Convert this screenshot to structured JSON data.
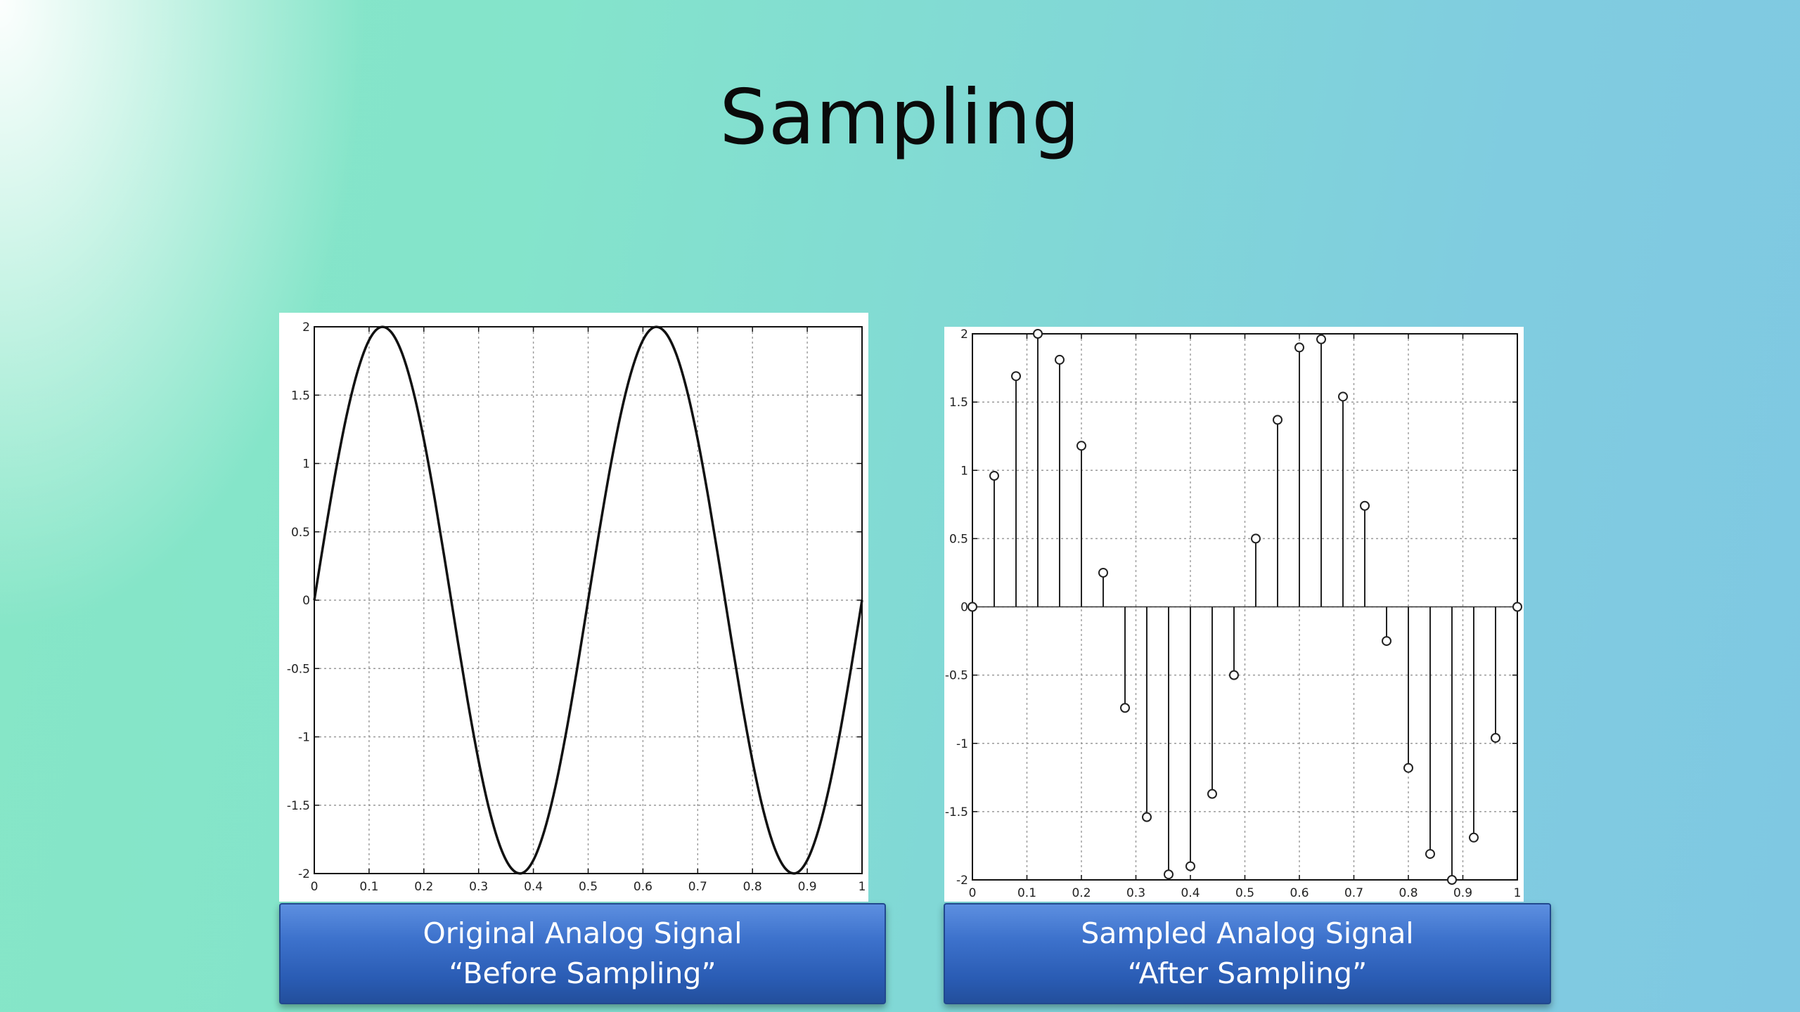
{
  "slide": {
    "title": "Sampling"
  },
  "captions": {
    "analog": {
      "line1": "Original Analog Signal",
      "line2": "“Before Sampling”"
    },
    "sampled": {
      "line1": "Sampled Analog Signal",
      "line2": "“After Sampling”"
    }
  },
  "chart_data": [
    {
      "type": "line",
      "function": "2*sin(4*pi*x)",
      "x": [
        0,
        0.02,
        0.04,
        0.06,
        0.08,
        0.1,
        0.12,
        0.14,
        0.16,
        0.18,
        0.2,
        0.22,
        0.24,
        0.26,
        0.28,
        0.3,
        0.32,
        0.34,
        0.36,
        0.38,
        0.4,
        0.42,
        0.44,
        0.46,
        0.48,
        0.5,
        0.52,
        0.54,
        0.56,
        0.58,
        0.6,
        0.62,
        0.64,
        0.66,
        0.68,
        0.7,
        0.72,
        0.74,
        0.76,
        0.78,
        0.8,
        0.82,
        0.84,
        0.86,
        0.88,
        0.9,
        0.92,
        0.94,
        0.96,
        0.98,
        1.0
      ],
      "y": [
        0,
        0.497,
        0.963,
        1.369,
        1.687,
        1.902,
        1.996,
        1.963,
        1.809,
        1.541,
        1.176,
        0.737,
        0.251,
        -0.251,
        -0.737,
        -1.176,
        -1.541,
        -1.809,
        -1.963,
        -1.996,
        -1.902,
        -1.687,
        -1.369,
        -0.963,
        -0.497,
        0,
        0.497,
        0.963,
        1.369,
        1.687,
        1.902,
        1.996,
        1.963,
        1.809,
        1.541,
        1.176,
        0.737,
        0.251,
        -0.251,
        -0.737,
        -1.176,
        -1.541,
        -1.809,
        -1.963,
        -1.996,
        -1.902,
        -1.687,
        -1.369,
        -0.963,
        -0.497,
        0
      ],
      "xlim": [
        0,
        1
      ],
      "ylim": [
        -2,
        2
      ],
      "xticks": [
        "0",
        "0.1",
        "0.2",
        "0.3",
        "0.4",
        "0.5",
        "0.6",
        "0.7",
        "0.8",
        "0.9",
        "1"
      ],
      "yticks": [
        "2",
        "1.5",
        "1",
        "0.5",
        "0",
        "-0.5",
        "-1",
        "-1.5",
        "-2"
      ],
      "grid": true,
      "line_color": "#111111"
    },
    {
      "type": "scatter",
      "style": "stem",
      "x": [
        0,
        0.04,
        0.08,
        0.12,
        0.16,
        0.2,
        0.24,
        0.28,
        0.32,
        0.36,
        0.4,
        0.44,
        0.48,
        0.52,
        0.56,
        0.6,
        0.64,
        0.68,
        0.72,
        0.76,
        0.8,
        0.84,
        0.88,
        0.92,
        0.96,
        1.0
      ],
      "y": [
        0,
        0.96,
        1.69,
        2.0,
        1.81,
        1.18,
        0.25,
        -0.74,
        -1.54,
        -1.96,
        -1.9,
        -1.37,
        -0.5,
        0.5,
        1.37,
        1.9,
        1.96,
        1.54,
        0.74,
        -0.25,
        -1.18,
        -1.81,
        -2.0,
        -1.69,
        -0.96,
        0
      ],
      "xlim": [
        0,
        1
      ],
      "ylim": [
        -2,
        2
      ],
      "xticks": [
        "0",
        "0.1",
        "0.2",
        "0.3",
        "0.4",
        "0.5",
        "0.6",
        "0.7",
        "0.8",
        "0.9",
        "1"
      ],
      "yticks": [
        "2",
        "1.5",
        "1",
        "0.5",
        "0",
        "-0.5",
        "-1",
        "-1.5",
        "-2"
      ],
      "grid": true,
      "marker": "circle"
    }
  ]
}
